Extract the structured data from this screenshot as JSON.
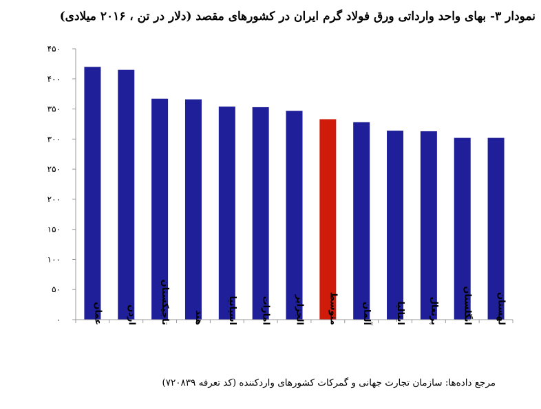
{
  "title": "نمودار ۳- بهای واحد وارداتی ورق فولاد گرم ایران در کشورهای مقصد (دلار در تن ، ۲۰۱۶ میلادی)",
  "source": "مرجع داده‌ها: سازمان تجارت جهانی و گمرکات کشورهای واردکننده (کد تعرفه ۷۲۰۸۳۹)",
  "colors": {
    "bar": "#1f1f9a",
    "highlight": "#d01a0a",
    "axis": "#999999"
  },
  "chart_data": {
    "type": "bar",
    "categories": [
      "عمان",
      "اردن",
      "تاجیکستان",
      "هند",
      "اسپانیا",
      "امارات",
      "الجزایر",
      "متوسط",
      "آلمان",
      "ایتالیا",
      "پرتغال",
      "انگلستان",
      "لهستان"
    ],
    "values": [
      420,
      415,
      367,
      366,
      354,
      353,
      347,
      333,
      328,
      314,
      313,
      302,
      302
    ],
    "highlight_index": 7,
    "ylim": [
      0,
      450
    ],
    "yticks": [
      0,
      50,
      100,
      150,
      200,
      250,
      300,
      350,
      400,
      450
    ],
    "ytick_labels": [
      "۰",
      "۵۰",
      "۱۰۰",
      "۱۵۰",
      "۲۰۰",
      "۲۵۰",
      "۳۰۰",
      "۳۵۰",
      "۴۰۰",
      "۴۵۰"
    ],
    "grid": false,
    "legend": "none"
  }
}
